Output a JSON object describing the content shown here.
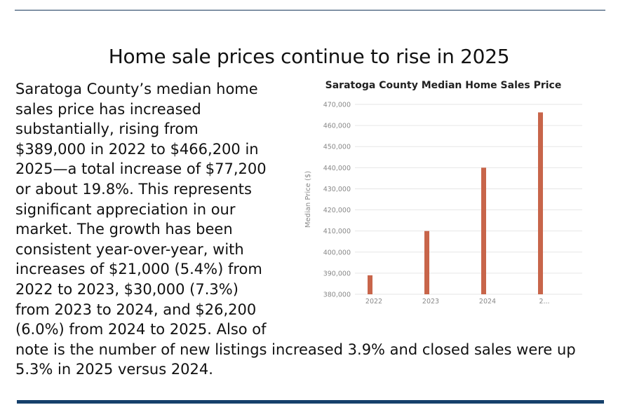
{
  "article": {
    "headline": "Home sale prices continue to rise in 2025",
    "body": "Saratoga County’s median home sales price has increased substantially, rising from $389,000 in 2022 to $466,200 in 2025—a total increase of $77,200 or about 19.8%. This represents significant appreciation in our market. The growth has been consistent year-over-year, with increases of $21,000 (5.4%) from 2022 to 2023, $30,000 (7.3%) from 2023 to 2024, and $26,200 (6.0%) from 2024 to 2025. Also of note is the number of new listings increased 3.9% and closed sales were up 5.3% in 2025 versus 2024."
  },
  "chart_data": {
    "type": "bar",
    "title": "Saratoga County Median Home Sales Price",
    "xlabel": "",
    "ylabel": "Median Price ($)",
    "categories": [
      "2022",
      "2023",
      "2024",
      "2..."
    ],
    "values": [
      389000,
      410000,
      440000,
      466200
    ],
    "ylim": [
      380000,
      470000
    ],
    "yticks": [
      380000,
      390000,
      400000,
      410000,
      420000,
      430000,
      440000,
      450000,
      460000,
      470000
    ],
    "ytick_labels": [
      "380,000",
      "390,000",
      "400,000",
      "410,000",
      "420,000",
      "430,000",
      "440,000",
      "450,000",
      "460,000",
      "470,000"
    ],
    "grid": true,
    "legend": "none",
    "bar_color": "#c8654a"
  }
}
